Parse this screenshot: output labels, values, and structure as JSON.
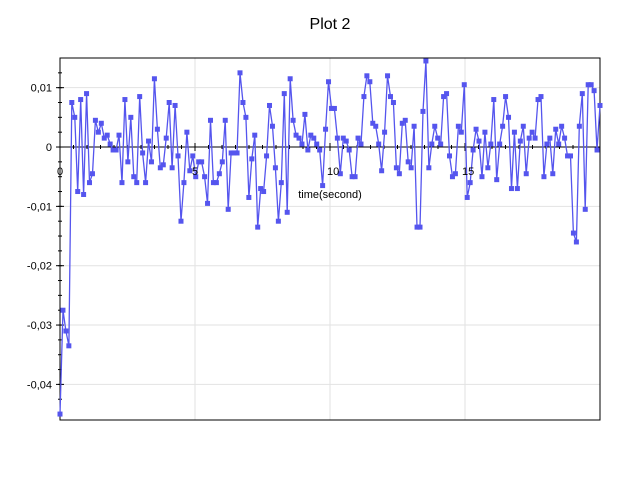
{
  "chart_data": {
    "type": "line",
    "title": "Plot 2",
    "xlabel": "time(second)",
    "ylabel": "",
    "xlim": [
      0,
      20
    ],
    "ylim": [
      -0.046,
      0.015
    ],
    "grid": true,
    "x_ticks": [
      0,
      5,
      10,
      15
    ],
    "x_tick_labels": [
      "0",
      "5",
      "10",
      "15"
    ],
    "y_ticks": [
      0.01,
      0,
      -0.01,
      -0.02,
      -0.03,
      -0.04
    ],
    "y_tick_labels": [
      "0,01",
      "0",
      "-0,01",
      "-0,02",
      "-0,03",
      "-0,04"
    ],
    "colors": {
      "series": "#5555ee"
    },
    "series": [
      {
        "values": [
          -0.045,
          -0.0275,
          -0.031,
          -0.0335,
          0.0075,
          0.005,
          -0.0075,
          0.008,
          -0.008,
          0.009,
          -0.006,
          -0.0045,
          0.0045,
          0.0025,
          0.004,
          0.0015,
          0.002,
          0.0005,
          -0.0005,
          -0.0005,
          0.002,
          -0.006,
          0.008,
          -0.0025,
          0.005,
          -0.005,
          -0.006,
          0.0085,
          -0.001,
          -0.006,
          0.001,
          -0.0025,
          0.0115,
          0.003,
          -0.0035,
          -0.003,
          0.0015,
          0.0075,
          -0.0035,
          0.007,
          -0.0015,
          -0.0125,
          -0.006,
          0.0025,
          -0.004,
          -0.0015,
          -0.005,
          -0.0025,
          -0.0025,
          -0.005,
          -0.0095,
          0.0045,
          -0.006,
          -0.006,
          -0.0045,
          -0.0025,
          0.0045,
          -0.0105,
          -0.001,
          -0.001,
          -0.001,
          0.0125,
          0.0075,
          0.005,
          -0.0085,
          -0.002,
          0.002,
          -0.0135,
          -0.007,
          -0.0075,
          -0.0015,
          0.007,
          0.0035,
          -0.0035,
          -0.0125,
          -0.006,
          0.009,
          -0.011,
          0.0115,
          0.0045,
          0.002,
          0.0015,
          0.0005,
          0.0055,
          -0.0005,
          0.002,
          0.0015,
          0.0005,
          -0.0005,
          -0.0065,
          0.003,
          0.011,
          0.0065,
          0.0065,
          0.0015,
          -0.0045,
          0.0015,
          0.001,
          -0.0005,
          -0.005,
          -0.005,
          0.0015,
          0.0005,
          0.0085,
          0.012,
          0.011,
          0.004,
          0.0035,
          0.0005,
          -0.004,
          0.0025,
          0.012,
          0.0085,
          0.0075,
          -0.0035,
          -0.0045,
          0.004,
          0.0045,
          -0.0025,
          -0.0035,
          0.0035,
          -0.0135,
          -0.0135,
          0.006,
          0.0145,
          -0.0035,
          0.0005,
          0.0035,
          0.0015,
          0.0005,
          0.0085,
          0.009,
          -0.0015,
          -0.005,
          -0.0045,
          0.0035,
          0.0025,
          0.0105,
          -0.0085,
          -0.006,
          -0.0005,
          0.003,
          0.001,
          -0.005,
          0.0025,
          -0.0035,
          0.0005,
          0.008,
          -0.0055,
          0.0005,
          0.0035,
          0.0085,
          0.005,
          -0.007,
          0.0025,
          -0.007,
          0.001,
          0.0035,
          -0.0045,
          0.0015,
          0.0025,
          0.0015,
          0.008,
          0.0085,
          -0.005,
          0.0005,
          0.0015,
          -0.0045,
          0.003,
          0.0005,
          0.0035,
          0.0015,
          -0.0015,
          -0.0015,
          -0.0145,
          -0.016,
          0.0035,
          0.009,
          -0.0105,
          0.0105,
          0.0105,
          0.0095,
          -0.0005,
          0.007
        ]
      }
    ]
  }
}
